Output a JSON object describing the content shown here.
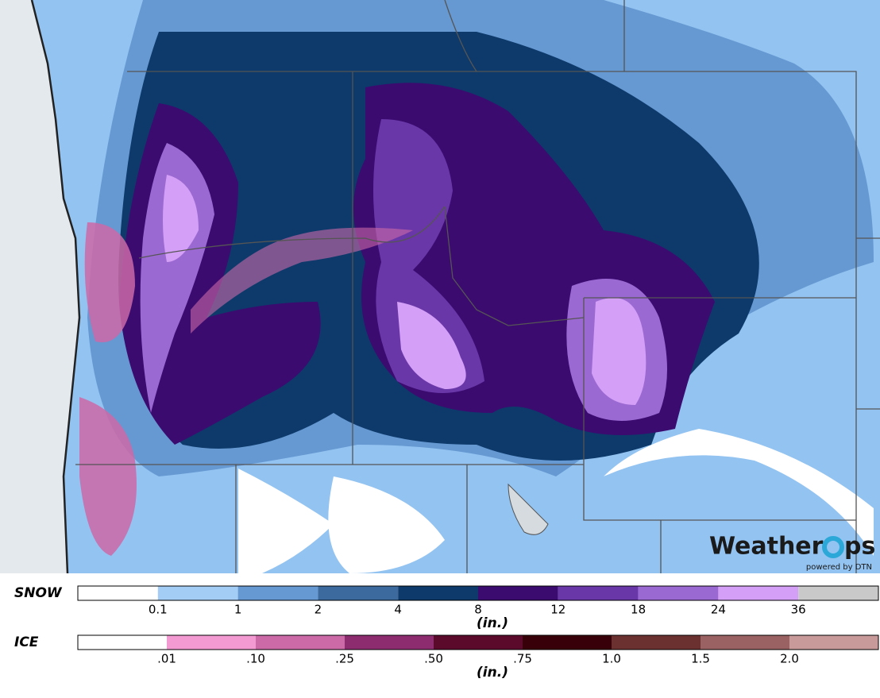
{
  "logo": {
    "part1": "Weather",
    "part2": "ps",
    "tagline": "powered by DTN"
  },
  "legends": [
    {
      "label": "SNOW",
      "unit": "(in.)",
      "colors": [
        "#ffffff",
        "#a4cdf6",
        "#6699d2",
        "#3c6a9e",
        "#0d3a6b",
        "#3b0b70",
        "#6a37a8",
        "#9b69d2",
        "#d49ff6",
        "#c9c9c9"
      ],
      "ticks": [
        "0.1",
        "1",
        "2",
        "4",
        "8",
        "12",
        "18",
        "24",
        "36"
      ]
    },
    {
      "label": "ICE",
      "unit": "(in.)",
      "colors": [
        "#ffffff",
        "#f49ad2",
        "#cc69a7",
        "#8e2c70",
        "#5c0a2c",
        "#380008",
        "#6b3030",
        "#9a6262",
        "#c99a9a"
      ],
      "ticks": [
        ".01",
        ".10",
        ".25",
        ".50",
        ".75",
        "1.0",
        "1.5",
        "2.0"
      ]
    }
  ]
}
